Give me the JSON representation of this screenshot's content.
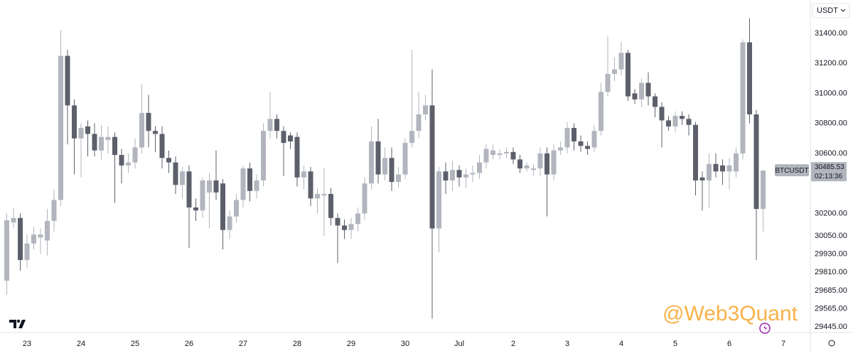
{
  "chart_data": {
    "type": "candlestick",
    "currency_button": "USDT",
    "symbol_label": "BTCUSDT",
    "last_price_label": "30485.53",
    "countdown_label": "02:13:36",
    "watermark": "@Web3Quant",
    "up_color": "#b2b5be",
    "down_color": "#5d606b",
    "grid": false,
    "ylim": [
      29407,
      31622
    ],
    "yticks": [
      {
        "value": 31400,
        "label": "31400.00"
      },
      {
        "value": 31200,
        "label": "31200.00"
      },
      {
        "value": 31000,
        "label": "31000.00"
      },
      {
        "value": 30800,
        "label": "30800.00"
      },
      {
        "value": 30600,
        "label": "30600.00"
      },
      {
        "value": 30200,
        "label": "30200.00"
      },
      {
        "value": 30050,
        "label": "30050.00"
      },
      {
        "value": 29930,
        "label": "29930.00"
      },
      {
        "value": 29810,
        "label": "29810.00"
      },
      {
        "value": 29685,
        "label": "29685.00"
      },
      {
        "value": 29565,
        "label": "29565.00"
      },
      {
        "value": 29445,
        "label": "29445.00"
      }
    ],
    "xlim": [
      -1,
      119
    ],
    "xticks": [
      {
        "value": 3,
        "label": "23"
      },
      {
        "value": 11,
        "label": "24"
      },
      {
        "value": 19,
        "label": "25"
      },
      {
        "value": 27,
        "label": "26"
      },
      {
        "value": 35,
        "label": "27"
      },
      {
        "value": 43,
        "label": "28"
      },
      {
        "value": 51,
        "label": "29"
      },
      {
        "value": 59,
        "label": "30"
      },
      {
        "value": 67,
        "label": "Jul"
      },
      {
        "value": 75,
        "label": "2"
      },
      {
        "value": 83,
        "label": "3"
      },
      {
        "value": 91,
        "label": "4"
      },
      {
        "value": 99,
        "label": "5"
      },
      {
        "value": 107,
        "label": "6"
      },
      {
        "value": 115,
        "label": "7"
      }
    ],
    "open": [
      29752,
      30140,
      30170,
      29890,
      30000,
      30040,
      30020,
      30150,
      30290,
      31250,
      30920,
      30700,
      30780,
      30730,
      30620,
      30690,
      30710,
      30590,
      30520,
      30540,
      30640,
      30870,
      30750,
      30730,
      30570,
      30540,
      30390,
      30480,
      30240,
      30220,
      30340,
      30420,
      30400,
      30090,
      30180,
      30290,
      30500,
      30350,
      30420,
      30750,
      30830,
      30750,
      30720,
      30710,
      30440,
      30480,
      30300,
      30320,
      30330,
      30170,
      30120,
      30090,
      30130,
      30200,
      30400,
      30680,
      30460,
      30570,
      30410,
      30460,
      30670,
      30750,
      30860,
      30920,
      30100,
      30480,
      30420,
      30490,
      30440,
      30460,
      30470,
      30540,
      30590,
      30590,
      30600,
      30610,
      30560,
      30500,
      30490,
      30500,
      30600,
      30460,
      30620,
      30640,
      30770,
      30680,
      30650,
      30640,
      30750,
      31010,
      31130,
      31160,
      31270,
      31000,
      30960,
      31070,
      30980,
      30910,
      30820,
      30780,
      30850,
      30830,
      30790,
      30440,
      30420,
      30530,
      30520,
      30480,
      30480,
      30600,
      31340,
      30860,
      30230
    ],
    "high": [
      30202,
      30240,
      30200,
      30060,
      30110,
      30100,
      30230,
      30360,
      31420,
      31290,
      30960,
      30800,
      30820,
      30800,
      30790,
      30780,
      30740,
      30630,
      30600,
      30700,
      31060,
      30990,
      30780,
      30780,
      30620,
      30580,
      30510,
      30520,
      30300,
      30440,
      30470,
      30620,
      30430,
      30220,
      30330,
      30520,
      30540,
      30460,
      30800,
      31010,
      30860,
      30780,
      30740,
      30740,
      30520,
      30510,
      30370,
      30500,
      30370,
      30200,
      30160,
      30170,
      30240,
      30440,
      30780,
      30830,
      30640,
      30640,
      30510,
      30700,
      31290,
      31010,
      30990,
      31160,
      30510,
      30540,
      30550,
      30520,
      30500,
      30520,
      30590,
      30660,
      30660,
      30630,
      30640,
      30640,
      30590,
      30540,
      30530,
      30640,
      30640,
      30660,
      30680,
      30810,
      30800,
      30720,
      30680,
      30790,
      31070,
      31380,
      31240,
      31340,
      31290,
      31030,
      31100,
      31140,
      31000,
      30940,
      30850,
      30880,
      30880,
      30860,
      30810,
      30480,
      30600,
      30600,
      30560,
      30570,
      30640,
      31360,
      31500,
      30890,
      30490
    ],
    "low": [
      29657,
      30100,
      29820,
      29840,
      29960,
      29930,
      29920,
      30080,
      30250,
      30660,
      30460,
      30440,
      30580,
      30580,
      30560,
      30600,
      30270,
      30400,
      30470,
      30500,
      30600,
      30640,
      30610,
      30500,
      30470,
      30330,
      30300,
      29970,
      30150,
      30170,
      30100,
      30290,
      29960,
      30030,
      30140,
      30240,
      30280,
      30300,
      30380,
      30700,
      30700,
      30450,
      30630,
      30380,
      30360,
      30250,
      30200,
      30050,
      30120,
      29870,
      30030,
      30030,
      30080,
      30160,
      30360,
      30400,
      30420,
      30350,
      30370,
      30430,
      30640,
      30700,
      30820,
      29500,
      29940,
      30330,
      30350,
      30380,
      30370,
      30410,
      30430,
      30500,
      30560,
      30560,
      30570,
      30530,
      30470,
      30480,
      30450,
      30450,
      30180,
      30420,
      30590,
      30600,
      30620,
      30610,
      30590,
      30610,
      30720,
      30980,
      31080,
      31120,
      30950,
      30930,
      30910,
      30920,
      30840,
      30640,
      30750,
      30740,
      30790,
      30720,
      30320,
      30220,
      30240,
      30440,
      30390,
      30360,
      30440,
      30560,
      30800,
      29890,
      30080
    ],
    "close": [
      30155,
      30170,
      29890,
      30000,
      30060,
      30060,
      30150,
      30290,
      31250,
      30920,
      30700,
      30770,
      30730,
      30620,
      30710,
      30710,
      30590,
      30520,
      30540,
      30640,
      30870,
      30750,
      30730,
      30570,
      30540,
      30390,
      30480,
      30240,
      30220,
      30420,
      30420,
      30340,
      30090,
      30180,
      30290,
      30500,
      30350,
      30420,
      30750,
      30830,
      30750,
      30670,
      30680,
      30440,
      30480,
      30300,
      30330,
      30330,
      30170,
      30120,
      30090,
      30130,
      30200,
      30400,
      30680,
      30460,
      30570,
      30410,
      30460,
      30670,
      30750,
      30860,
      30920,
      30100,
      30480,
      30420,
      30490,
      30440,
      30460,
      30470,
      30540,
      30630,
      30620,
      30600,
      30610,
      30560,
      30500,
      30520,
      30500,
      30600,
      30460,
      30620,
      30640,
      30770,
      30680,
      30650,
      30630,
      30750,
      31010,
      31130,
      31160,
      31270,
      30980,
      30960,
      31070,
      30980,
      30910,
      30820,
      30780,
      30850,
      30830,
      30790,
      30420,
      30420,
      30530,
      30480,
      30480,
      30520,
      30600,
      31340,
      30860,
      30230,
      30485.53
    ]
  }
}
